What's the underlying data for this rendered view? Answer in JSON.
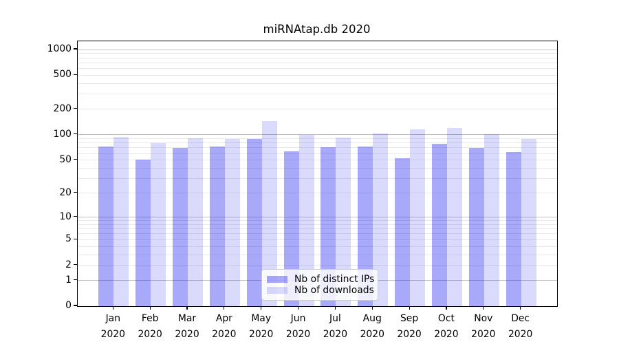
{
  "title": "miRNAtap.db 2020",
  "chart_data": {
    "type": "bar",
    "title": "miRNAtap.db 2020",
    "scale": "log1p",
    "categories": [
      "Jan",
      "Feb",
      "Mar",
      "Apr",
      "May",
      "Jun",
      "Jul",
      "Aug",
      "Sep",
      "Oct",
      "Nov",
      "Dec"
    ],
    "category_year": "2020",
    "series": [
      {
        "name": "Nb of distinct IPs",
        "color": "rgba(8,8,242,0.35)",
        "values": [
          72,
          51,
          70,
          73,
          90,
          64,
          71,
          72,
          53,
          78,
          70,
          62
        ]
      },
      {
        "name": "Nb of downloads",
        "color": "rgba(8,8,242,0.15)",
        "values": [
          94,
          80,
          91,
          89,
          144,
          100,
          92,
          103,
          116,
          121,
          102,
          90
        ]
      }
    ],
    "xlabel": "",
    "ylabel": "",
    "y_ticks": [
      0,
      1,
      2,
      5,
      10,
      20,
      50,
      100,
      200,
      500,
      1000
    ],
    "major_gridlines": [
      1,
      10,
      100,
      1000
    ],
    "minor_gridline_decades": [
      1,
      10,
      100
    ],
    "ylim": [
      0,
      1250
    ],
    "grid": true,
    "legend_position": "lower center"
  },
  "colors": {
    "major_grid": "#c0c0c0",
    "minor_grid": "#e9e9e9",
    "spine": "#000000",
    "text": "#000000",
    "legend_border": "#cccccc",
    "legend_bg": "rgba(255,255,255,0.8)"
  }
}
